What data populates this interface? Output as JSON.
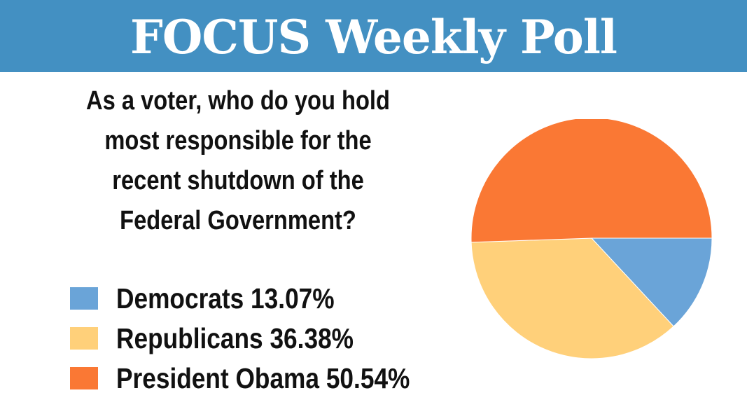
{
  "banner": {
    "title": "FOCUS Weekly Poll",
    "color": "#4390c2"
  },
  "question": {
    "lines": [
      "As a voter, who do you hold",
      "most responsible for the",
      "recent shutdown of the",
      "Federal Government?"
    ]
  },
  "legend": [
    {
      "label": "Democrats 13.07%",
      "color": "#6aa4d8"
    },
    {
      "label": "Republicans 36.38%",
      "color": "#ffd07a"
    },
    {
      "label": "President Obama 50.54%",
      "color": "#fa7834"
    }
  ],
  "chart_data": {
    "type": "pie",
    "title": "As a voter, who do you hold most responsible for the recent shutdown of the Federal Government?",
    "slices": [
      {
        "name": "Democrats",
        "value": 13.07,
        "color": "#6aa4d8"
      },
      {
        "name": "Republicans",
        "value": 36.38,
        "color": "#ffd07a"
      },
      {
        "name": "President Obama",
        "value": 50.54,
        "color": "#fa7834"
      }
    ],
    "legend_position": "left"
  }
}
